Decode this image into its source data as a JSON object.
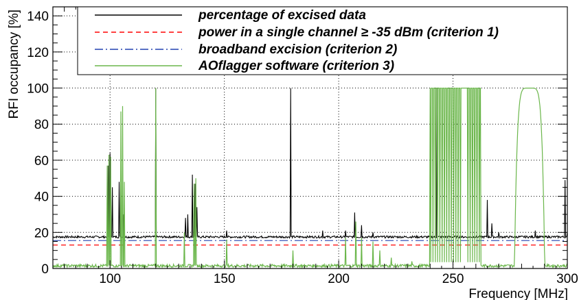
{
  "chart_data": {
    "type": "line",
    "xlabel": "Frequency [MHz]",
    "ylabel": "RFI occupancy [%]",
    "xlim": [
      75,
      300
    ],
    "ylim": [
      0,
      145
    ],
    "xticks": [
      100,
      150,
      200,
      250,
      300
    ],
    "yticks": [
      0,
      20,
      40,
      60,
      80,
      100,
      120,
      140
    ],
    "grid": true,
    "legend_position": "top",
    "series": [
      {
        "name": "percentage of excised data",
        "color": "#000000",
        "style": "solid",
        "baseline": 17.5,
        "spikes": [
          [
            99.3,
            57
          ],
          [
            100,
            64
          ],
          [
            101,
            45
          ],
          [
            104,
            48
          ],
          [
            106,
            30
          ],
          [
            120,
            100
          ],
          [
            133,
            28
          ],
          [
            134,
            30
          ],
          [
            136,
            52
          ],
          [
            137.2,
            47
          ],
          [
            138,
            34
          ],
          [
            151,
            21
          ],
          [
            179,
            100
          ],
          [
            193,
            21
          ],
          [
            203,
            21
          ],
          [
            207,
            31
          ],
          [
            210,
            24
          ],
          [
            215,
            20
          ],
          [
            243,
            100
          ],
          [
            265,
            38
          ],
          [
            267,
            25
          ],
          [
            270,
            20
          ],
          [
            286,
            21
          ],
          [
            299,
            49
          ],
          [
            300,
            20
          ]
        ]
      },
      {
        "name": "power in a single channel ≥ -35 dBm (criterion 1)",
        "color": "#ff0000",
        "style": "dashed",
        "level": 13
      },
      {
        "name": "broadband excision (criterion 2)",
        "color": "#2040b0",
        "style": "dashdot",
        "level": 15.5
      },
      {
        "name": "AOflagger software (criterion 3)",
        "color": "#6ab64a",
        "style": "solid",
        "baseline": 1.5,
        "spikes": [
          [
            98.8,
            57
          ],
          [
            99.5,
            63
          ],
          [
            100.2,
            62
          ],
          [
            104.7,
            87
          ],
          [
            105.4,
            90
          ],
          [
            106.2,
            48
          ],
          [
            120,
            100
          ],
          [
            132.5,
            20
          ],
          [
            136.8,
            47
          ],
          [
            137.6,
            50
          ],
          [
            151,
            16
          ],
          [
            180,
            10
          ],
          [
            203,
            17
          ],
          [
            207.5,
            26
          ],
          [
            210,
            17
          ],
          [
            215,
            15
          ],
          [
            218,
            10
          ],
          [
            223,
            6
          ],
          [
            232,
            4
          ]
        ],
        "bands": [
          {
            "from": 240,
            "to": 262,
            "level": 100
          },
          {
            "from": 277,
            "to": 290,
            "level": 100
          }
        ]
      }
    ]
  }
}
